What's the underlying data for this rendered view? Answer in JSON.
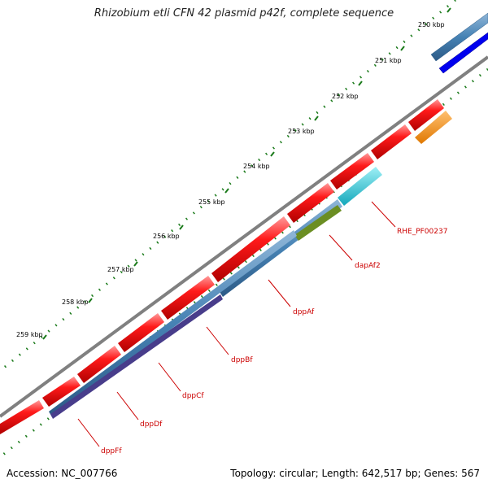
{
  "title": "Rhizobium etli CFN 42 plasmid p42f, complete sequence",
  "accession": "Accession: NC_007766",
  "summary": "Topology: circular; Length: 642,517 bp; Genes: 567",
  "kbp_labels": [
    "250 kbp",
    "251 kbp",
    "252 kbp",
    "253 kbp",
    "254 kbp",
    "255 kbp",
    "256 kbp",
    "257 kbp",
    "258 kbp",
    "259 kbp"
  ],
  "gene_labels": [
    "RHE_PF00237",
    "dapAf2",
    "dppAf",
    "dppBf",
    "dppCf",
    "dppDf",
    "dppFf"
  ],
  "colors": {
    "cds": "#ff0000",
    "backbone": "#777777",
    "tick": "#1a7a1a",
    "label": "#cc0000",
    "feature_blue": "#4682b4",
    "feature_darkblue": "#0000ee",
    "feature_orange": "#ff8c00",
    "feature_cyan": "#20c8d8",
    "feature_olive": "#6b8e23",
    "feature_slate": "#483d8b"
  }
}
